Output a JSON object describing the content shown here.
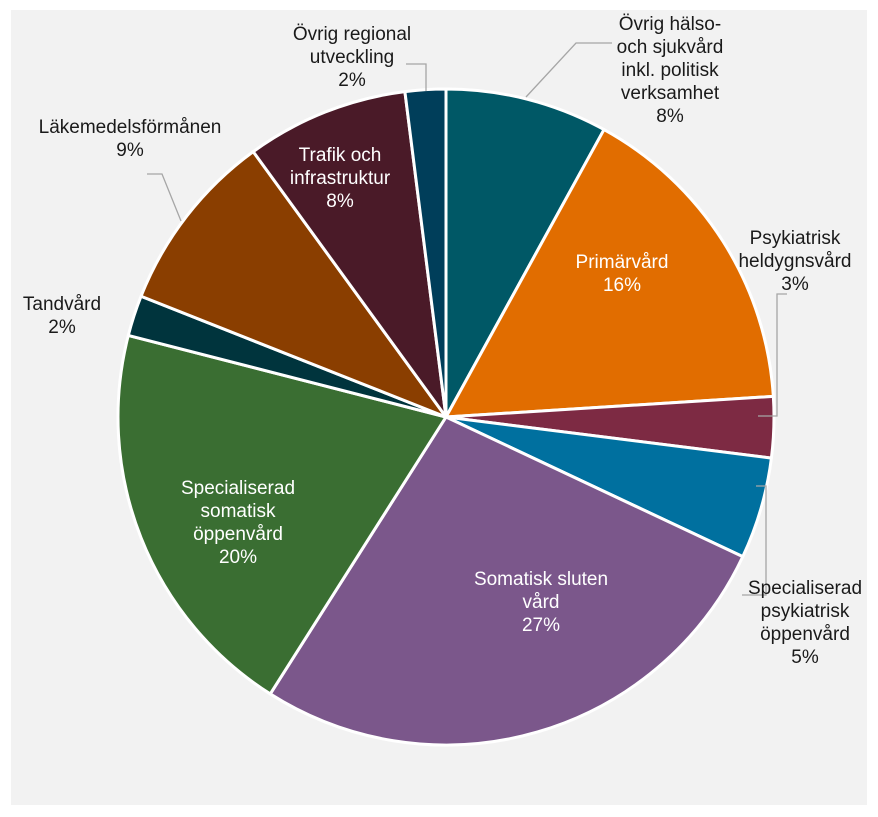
{
  "chart_data": {
    "type": "pie",
    "slices": [
      {
        "label": [
          "Övrig hälso-",
          "och sjukvård",
          "inkl. politisk",
          "verksamhet"
        ],
        "value": 8,
        "display": "8%",
        "color": "#005866"
      },
      {
        "label": [
          "Primärvård"
        ],
        "value": 16,
        "display": "16%",
        "color": "#e16d00"
      },
      {
        "label": [
          "Psykiatrisk",
          "heldygnsvård"
        ],
        "value": 3,
        "display": "3%",
        "color": "#7d2a43"
      },
      {
        "label": [
          "Specialiserad",
          "psykiatrisk",
          "öppenvård"
        ],
        "value": 5,
        "display": "5%",
        "color": "#00709f"
      },
      {
        "label": [
          "Somatisk sluten",
          "vård"
        ],
        "value": 27,
        "display": "27%",
        "color": "#7b578b"
      },
      {
        "label": [
          "Specialiserad",
          "somatisk",
          "öppenvård"
        ],
        "value": 20,
        "display": "20%",
        "color": "#3a6e32"
      },
      {
        "label": [
          "Tandvård"
        ],
        "value": 2,
        "display": "2%",
        "color": "#00343d"
      },
      {
        "label": [
          "Läkemedelsförmånen"
        ],
        "value": 9,
        "display": "9%",
        "color": "#8a3e00"
      },
      {
        "label": [
          "Trafik och",
          "infrastruktur"
        ],
        "value": 8,
        "display": "8%",
        "color": "#4a1a28"
      },
      {
        "label": [
          "Övrig regional",
          "utveckling"
        ],
        "value": 2,
        "display": "2%",
        "color": "#003e5a"
      }
    ]
  }
}
